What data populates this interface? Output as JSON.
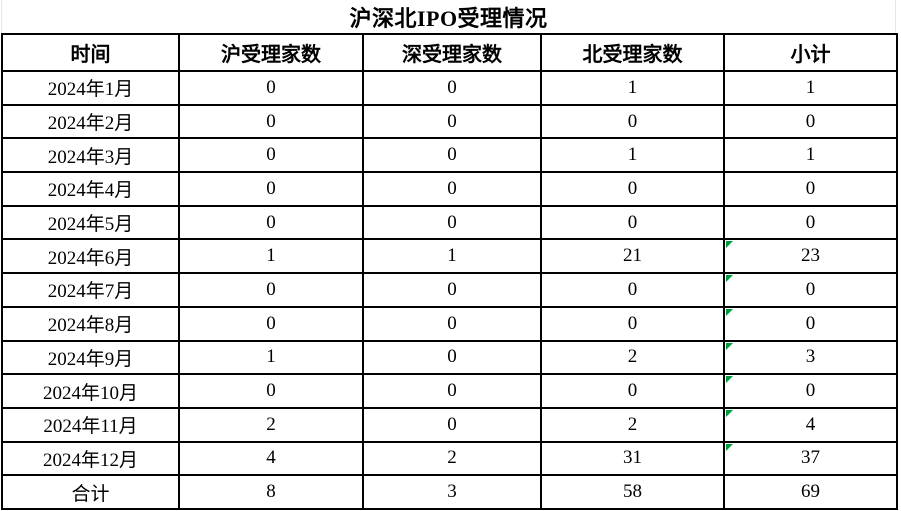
{
  "title": "沪深北IPO受理情况",
  "colors": {
    "background": "#ffffff",
    "border": "#000000",
    "text": "#000000",
    "indicator_green": "#009a3c"
  },
  "table": {
    "columns": [
      "时间",
      "沪受理家数",
      "深受理家数",
      "北受理家数",
      "小计"
    ],
    "total_label": "合计",
    "rows": [
      {
        "label": "2024年1月",
        "values": [
          "0",
          "0",
          "1",
          "1"
        ],
        "indicator": false
      },
      {
        "label": "2024年2月",
        "values": [
          "0",
          "0",
          "0",
          "0"
        ],
        "indicator": false
      },
      {
        "label": "2024年3月",
        "values": [
          "0",
          "0",
          "1",
          "1"
        ],
        "indicator": false
      },
      {
        "label": "2024年4月",
        "values": [
          "0",
          "0",
          "0",
          "0"
        ],
        "indicator": false
      },
      {
        "label": "2024年5月",
        "values": [
          "0",
          "0",
          "0",
          "0"
        ],
        "indicator": false
      },
      {
        "label": "2024年6月",
        "values": [
          "1",
          "1",
          "21",
          "23"
        ],
        "indicator": true
      },
      {
        "label": "2024年7月",
        "values": [
          "0",
          "0",
          "0",
          "0"
        ],
        "indicator": true
      },
      {
        "label": "2024年8月",
        "values": [
          "0",
          "0",
          "0",
          "0"
        ],
        "indicator": true
      },
      {
        "label": "2024年9月",
        "values": [
          "1",
          "0",
          "2",
          "3"
        ],
        "indicator": true
      },
      {
        "label": "2024年10月",
        "values": [
          "0",
          "0",
          "0",
          "0"
        ],
        "indicator": true
      },
      {
        "label": "2024年11月",
        "values": [
          "2",
          "0",
          "2",
          "4"
        ],
        "indicator": true
      },
      {
        "label": "2024年12月",
        "values": [
          "4",
          "2",
          "31",
          "37"
        ],
        "indicator": true
      },
      {
        "label": "合计",
        "values": [
          "8",
          "3",
          "58",
          "69"
        ],
        "indicator": false
      }
    ]
  }
}
